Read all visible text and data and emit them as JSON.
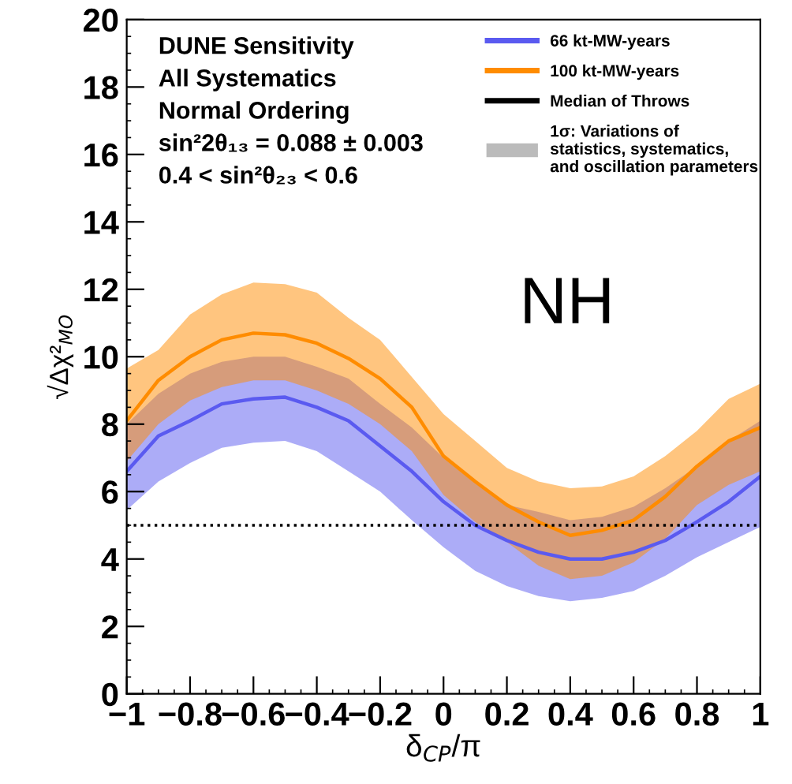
{
  "chart_data": {
    "type": "line",
    "xlabel": "δ$_{CP}$/π",
    "ylabel": "√Δχ²$_{MO}$",
    "x": [
      -1,
      -0.9,
      -0.8,
      -0.7,
      -0.6,
      -0.5,
      -0.4,
      -0.3,
      -0.2,
      -0.1,
      0,
      0.1,
      0.2,
      0.3,
      0.4,
      0.5,
      0.6,
      0.7,
      0.8,
      0.9,
      1.0
    ],
    "series": [
      {
        "name": "66 kt-MW-years",
        "color": "#5a5af0",
        "values": [
          6.6,
          7.65,
          8.1,
          8.6,
          8.75,
          8.8,
          8.5,
          8.1,
          7.35,
          6.6,
          5.7,
          5.0,
          4.55,
          4.2,
          4.0,
          4.0,
          4.2,
          4.55,
          5.1,
          5.7,
          6.45
        ],
        "lower": [
          5.45,
          6.3,
          6.85,
          7.3,
          7.45,
          7.5,
          7.2,
          6.6,
          6.0,
          5.15,
          4.35,
          3.65,
          3.2,
          2.9,
          2.75,
          2.85,
          3.05,
          3.5,
          4.05,
          4.5,
          4.95
        ],
        "upper": [
          8.0,
          8.9,
          9.5,
          9.85,
          10.0,
          10.0,
          9.7,
          9.35,
          8.6,
          7.9,
          7.0,
          6.25,
          5.6,
          5.4,
          5.15,
          5.25,
          5.55,
          6.1,
          6.75,
          7.5,
          8.1
        ]
      },
      {
        "name": "100 kt-MW-years",
        "color": "#ff8c00",
        "values": [
          8.1,
          9.3,
          10.0,
          10.5,
          10.7,
          10.65,
          10.4,
          9.95,
          9.35,
          8.5,
          7.05,
          6.3,
          5.6,
          5.1,
          4.7,
          4.85,
          5.15,
          5.85,
          6.75,
          7.5,
          7.9
        ],
        "lower": [
          6.9,
          8.0,
          8.7,
          9.1,
          9.3,
          9.3,
          9.0,
          8.6,
          8.0,
          7.2,
          5.9,
          5.1,
          4.5,
          3.8,
          3.4,
          3.5,
          3.9,
          4.6,
          5.6,
          6.2,
          6.6
        ],
        "upper": [
          9.65,
          10.2,
          11.25,
          11.85,
          12.2,
          12.15,
          11.9,
          11.15,
          10.5,
          9.4,
          8.3,
          7.5,
          6.7,
          6.3,
          6.1,
          6.15,
          6.45,
          7.05,
          7.8,
          8.75,
          9.2
        ]
      },
      {
        "name": "Median of Throws",
        "color": "#000000",
        "values": [
          null,
          null,
          null,
          null,
          null,
          null,
          null,
          null,
          null,
          null,
          null,
          null,
          null,
          null,
          null,
          null,
          null,
          null,
          null,
          null,
          null
        ]
      },
      {
        "name": "1σ: Variations of\nstatistics, systematics,\nand oscillation parameters",
        "type": "area",
        "color": "#bbbbbb",
        "values": [
          null,
          null,
          null,
          null,
          null,
          null,
          null,
          null,
          null,
          null,
          null,
          null,
          null,
          null,
          null,
          null,
          null,
          null,
          null,
          null,
          null
        ]
      }
    ],
    "xlim": [
      -1,
      1.0
    ],
    "ylim": [
      0,
      20
    ],
    "xticks": [
      {
        "value": -1,
        "label": "−1"
      },
      {
        "value": -0.8,
        "label": "−0.8"
      },
      {
        "value": -0.6,
        "label": "−0.6"
      },
      {
        "value": -0.4,
        "label": "−0.4"
      },
      {
        "value": -0.2,
        "label": "−0.2"
      },
      0,
      0.2,
      0.4,
      0.6,
      0.8,
      1
    ],
    "yticks": [
      0,
      2,
      4,
      6,
      8,
      10,
      12,
      14,
      16,
      18,
      20
    ],
    "ref_lines": [
      {
        "axis": "y",
        "value": 5,
        "color": "#000000",
        "line_style": "dotted"
      }
    ],
    "annotations": [
      "DUNE Sensitivity",
      "All Systematics",
      "Normal Ordering",
      "sin²2θ₁₃ = 0.088 ± 0.003",
      "0.4 < sin²θ₂₃ < 0.6",
      "NH"
    ],
    "legend": "top right",
    "grid": false,
    "marker": "none",
    "line_style": "solid"
  }
}
